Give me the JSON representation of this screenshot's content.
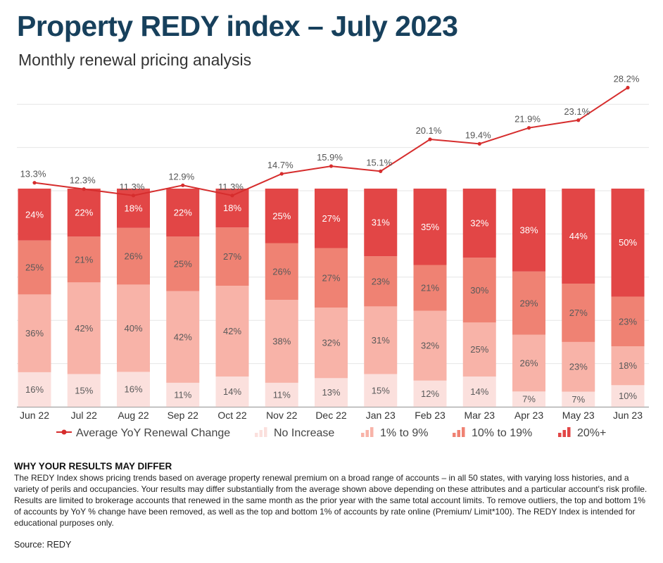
{
  "header": {
    "title": "Property REDY index – July 2023",
    "subtitle": "Monthly renewal pricing analysis"
  },
  "chart_data": {
    "type": "bar",
    "stacked": true,
    "percent_stacked": true,
    "categories": [
      "Jun 22",
      "Jul 22",
      "Aug 22",
      "Sep 22",
      "Oct 22",
      "Nov 22",
      "Dec 22",
      "Jan 23",
      "Feb 23",
      "Mar 23",
      "Apr 23",
      "May 23",
      "Jun 23"
    ],
    "series": [
      {
        "name": "No Increase",
        "color": "#fbe0dd",
        "values": [
          16,
          15,
          16,
          11,
          14,
          11,
          13,
          15,
          12,
          14,
          7,
          7,
          10
        ]
      },
      {
        "name": "1% to 9%",
        "color": "#f8b3a8",
        "values": [
          36,
          42,
          40,
          42,
          42,
          38,
          32,
          31,
          32,
          25,
          26,
          23,
          18
        ]
      },
      {
        "name": "10% to 19%",
        "color": "#ef8273",
        "values": [
          25,
          21,
          26,
          25,
          27,
          26,
          27,
          23,
          21,
          30,
          29,
          27,
          23
        ]
      },
      {
        "name": "20%+",
        "color": "#e24646",
        "values": [
          24,
          22,
          18,
          22,
          18,
          25,
          27,
          31,
          35,
          32,
          38,
          44,
          50
        ]
      }
    ],
    "line": {
      "name": "Average YoY Renewal Change",
      "color": "#d62d2d",
      "values": [
        13.3,
        12.3,
        11.3,
        12.9,
        11.3,
        14.7,
        15.9,
        15.1,
        20.1,
        19.4,
        21.9,
        23.1,
        28.2
      ],
      "labels": [
        "13.3%",
        "12.3%",
        "11.3%",
        "12.9%",
        "11.3%",
        "14.7%",
        "15.9%",
        "15.1%",
        "20.1%",
        "19.4%",
        "21.9%",
        "23.1%",
        "28.2%"
      ]
    },
    "legend_position": "bottom",
    "grid": true
  },
  "legend": {
    "line_label": "Average YoY Renewal Change",
    "items": [
      "No Increase",
      "1% to 9%",
      "10% to 19%",
      "20%+"
    ]
  },
  "note": {
    "heading": "WHY YOUR RESULTS MAY DIFFER",
    "body": "The REDY Index shows pricing trends based on average property renewal premium on a broad range of accounts – in all 50 states, with varying loss histories, and a variety of perils and occupancies. Your results may differ substantially from the average shown above depending on these attributes and a particular account's risk profile. Results are limited to brokerage accounts that renewed in the same month as the prior year with the same total account limits. To remove outliers, the top and bottom 1% of accounts by YoY % change have been removed, as well as the top and bottom 1% of accounts by rate online (Premium/ Limit*100). The REDY Index is intended for educational purposes only."
  },
  "source": "Source: REDY"
}
